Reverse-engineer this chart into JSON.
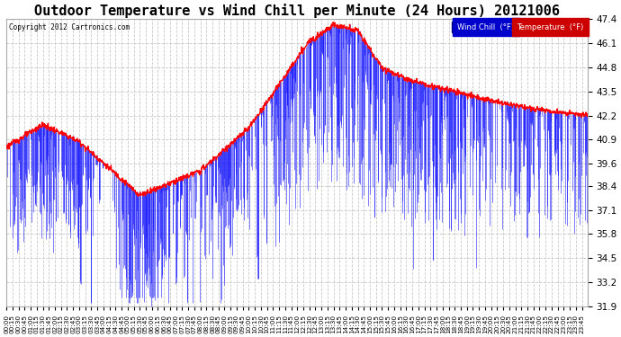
{
  "title": "Outdoor Temperature vs Wind Chill per Minute (24 Hours) 20121006",
  "copyright_text": "Copyright 2012 Cartronics.com",
  "ylim_min": 31.9,
  "ylim_max": 47.4,
  "yticks": [
    31.9,
    33.2,
    34.5,
    35.8,
    37.1,
    38.4,
    39.6,
    40.9,
    42.2,
    43.5,
    44.8,
    46.1,
    47.4
  ],
  "bg_color": "#ffffff",
  "plot_bg_color": "#ffffff",
  "grid_color": "#c8c8c8",
  "temp_color": "#ff0000",
  "windchill_color": "#0000ff",
  "title_fontsize": 11,
  "n_minutes": 1440,
  "xtick_interval_minutes": 15
}
